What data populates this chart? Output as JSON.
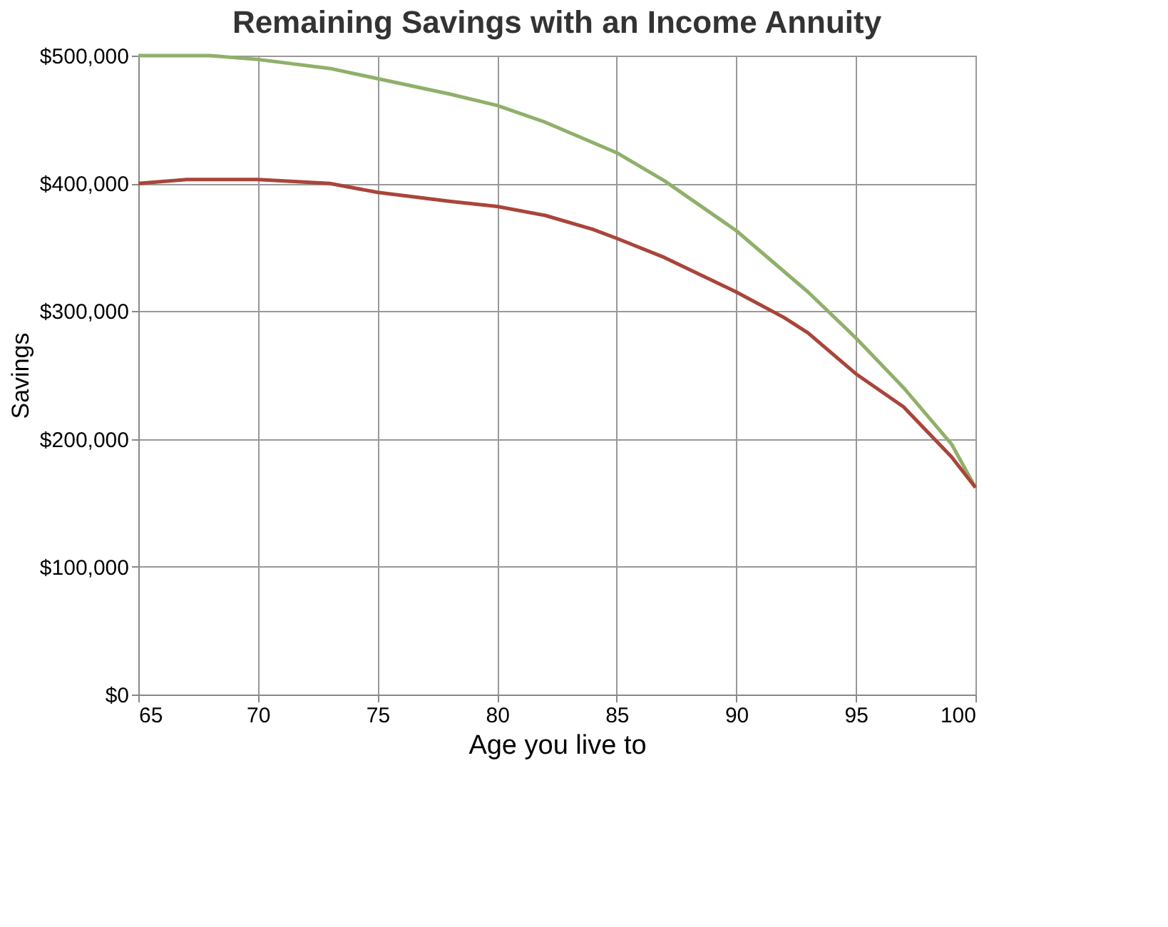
{
  "chart_data": {
    "type": "line",
    "title": "Remaining Savings with an Income Annuity",
    "xlabel": "Age you live to",
    "ylabel": "Savings",
    "xlim": [
      65,
      100
    ],
    "xticks": [
      65,
      70,
      75,
      80,
      85,
      90,
      95,
      100
    ],
    "ylim": [
      0,
      500000
    ],
    "yticks": [
      {
        "value": 0,
        "label": "$0"
      },
      {
        "value": 100000,
        "label": "$100,000"
      },
      {
        "value": 200000,
        "label": "$200,000"
      },
      {
        "value": 300000,
        "label": "$300,000"
      },
      {
        "value": 400000,
        "label": "$400,000"
      },
      {
        "value": 500000,
        "label": "$500,000"
      }
    ],
    "grid": true,
    "legend": false,
    "marker": "none",
    "line_style": "solid",
    "series": [
      {
        "color": "#8fb06a",
        "x": [
          65,
          68,
          70,
          73,
          75,
          78,
          80,
          82,
          85,
          87,
          90,
          93,
          95,
          97,
          99,
          100
        ],
        "values": [
          500000,
          500000,
          497000,
          490000,
          482000,
          470000,
          461000,
          448000,
          424000,
          402000,
          363000,
          315000,
          279000,
          240000,
          196000,
          162000
        ]
      },
      {
        "color": "#a9453a",
        "x": [
          65,
          67,
          70,
          73,
          75,
          78,
          80,
          82,
          84,
          85,
          87,
          90,
          92,
          93,
          95,
          97,
          99,
          100
        ],
        "values": [
          400000,
          403000,
          403000,
          400000,
          393000,
          386000,
          382000,
          375000,
          364000,
          357000,
          342000,
          315000,
          295000,
          283000,
          251000,
          225000,
          186000,
          162000
        ]
      }
    ]
  }
}
